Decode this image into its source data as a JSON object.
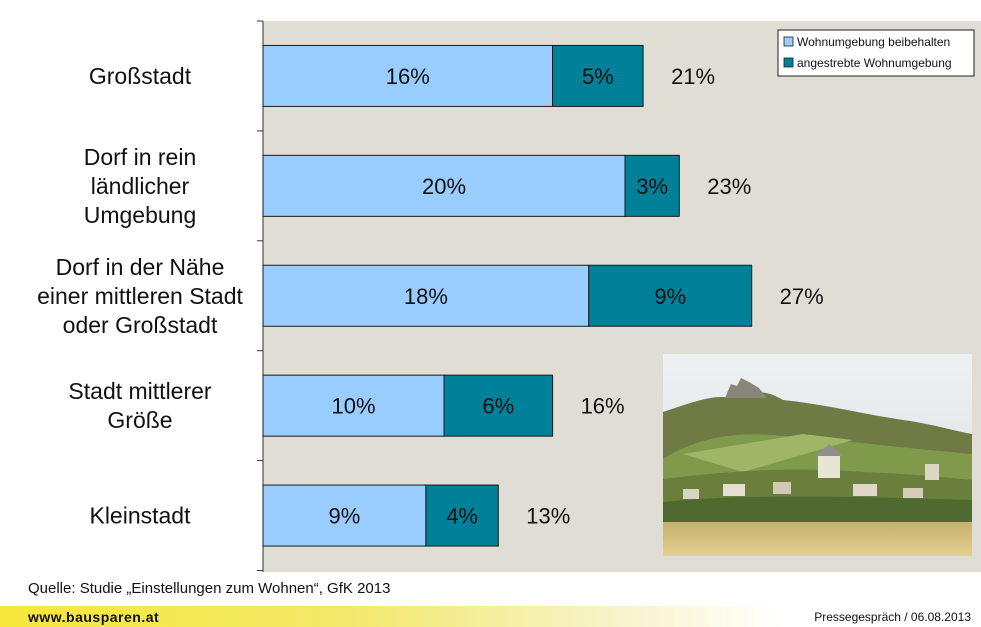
{
  "chart_data": {
    "type": "bar",
    "orientation": "horizontal",
    "stacked": true,
    "categories": [
      [
        "Großstadt"
      ],
      [
        "Dorf in rein",
        "ländlicher",
        "Umgebung"
      ],
      [
        "Dorf in der Nähe",
        "einer mittleren Stadt",
        "oder Großstadt"
      ],
      [
        "Stadt mittlerer",
        "Größe"
      ],
      [
        "Kleinstadt"
      ]
    ],
    "series": [
      {
        "name": "Wohnumgebung beibehalten",
        "values": [
          16,
          20,
          18,
          10,
          9
        ],
        "labels": [
          "16%",
          "20%",
          "18%",
          "10%",
          "9%"
        ],
        "color": "#99ccff"
      },
      {
        "name": "angestrebte Wohnumgebung",
        "values": [
          5,
          3,
          9,
          6,
          4
        ],
        "labels": [
          "5%",
          "3%",
          "9%",
          "6%",
          "4%"
        ],
        "color": "#008199"
      }
    ],
    "totals": [
      "21%",
      "23%",
      "27%",
      "16%",
      "13%"
    ],
    "xlim": [
      0,
      40
    ],
    "legend_position": "top-right",
    "plot_background": "#e0ddd4"
  },
  "footer": {
    "source": "Quelle: Studie „Einstellungen zum Wohnen“, GfK 2013",
    "website": "www.bausparen.at",
    "press": "Pressegespräch / 06.08.2013"
  }
}
